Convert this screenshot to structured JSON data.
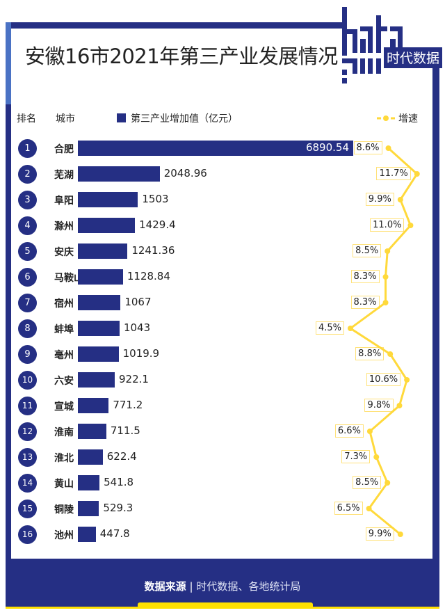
{
  "title": "安徽16市2021年第三产业发展情况",
  "logo": {
    "text_top": "data",
    "text_bottom": "guu",
    "brand": "时代数据"
  },
  "headers": {
    "rank": "排名",
    "city": "城市",
    "bar_legend": "第三产业增加值（亿元）",
    "line_legend": "增速"
  },
  "footer": {
    "label": "数据来源",
    "separator": "|",
    "source": "时代数据、各地统计局"
  },
  "colors": {
    "bar": "#252f84",
    "line": "#ffd93b",
    "frame": "#252f84",
    "accent": "#ffe000"
  },
  "chart_data": {
    "type": "bar",
    "orientation": "horizontal",
    "categories": [
      "合肥",
      "芜湖",
      "阜阳",
      "滁州",
      "安庆",
      "马鞍山",
      "宿州",
      "蚌埠",
      "亳州",
      "六安",
      "宣城",
      "淮南",
      "淮北",
      "黄山",
      "铜陵",
      "池州"
    ],
    "ranks": [
      "1",
      "2",
      "3",
      "4",
      "5",
      "6",
      "7",
      "8",
      "9",
      "10",
      "11",
      "12",
      "13",
      "14",
      "15",
      "16"
    ],
    "series": [
      {
        "name": "第三产业增加值（亿元）",
        "type": "bar",
        "values": [
          6890.54,
          2048.96,
          1503,
          1429.4,
          1241.36,
          1128.84,
          1067,
          1043,
          1019.9,
          922.1,
          771.2,
          711.5,
          622.4,
          541.8,
          529.3,
          447.8
        ],
        "labels": [
          "6890.54",
          "2048.96",
          "1503",
          "1429.4",
          "1241.36",
          "1128.84",
          "1067",
          "1043",
          "1019.9",
          "922.1",
          "771.2",
          "711.5",
          "622.4",
          "541.8",
          "529.3",
          "447.8"
        ]
      },
      {
        "name": "增速",
        "type": "line",
        "values": [
          8.6,
          11.7,
          9.9,
          11.0,
          8.5,
          8.3,
          8.3,
          4.5,
          8.8,
          10.6,
          9.8,
          6.6,
          7.3,
          8.5,
          6.5,
          9.9
        ],
        "labels": [
          "8.6%",
          "11.7%",
          "9.9%",
          "11.0%",
          "8.5%",
          "8.3%",
          "8.3%",
          "4.5%",
          "8.8%",
          "10.6%",
          "9.8%",
          "6.6%",
          "7.3%",
          "8.5%",
          "6.5%",
          "9.9%"
        ]
      }
    ],
    "grid": false,
    "legend": "top"
  }
}
